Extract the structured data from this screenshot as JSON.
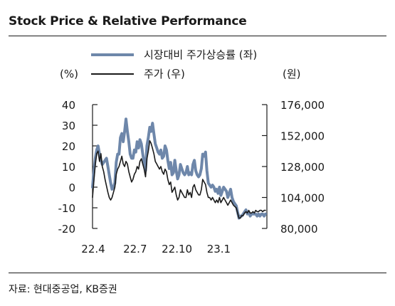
{
  "header": {
    "title": "Stock Price & Relative Performance"
  },
  "footer": {
    "source": "자료: 현대중공업, KB증권"
  },
  "chart_data": {
    "type": "line",
    "left_axis": {
      "unit": "(%)",
      "ylim": [
        -20,
        40
      ],
      "ticks": [
        "40",
        "30",
        "20",
        "10",
        "0",
        "-10",
        "-20"
      ],
      "tick_values": [
        40,
        30,
        20,
        10,
        0,
        -10,
        -20
      ]
    },
    "right_axis": {
      "unit": "(원)",
      "ylim": [
        80000,
        176000
      ],
      "ticks": [
        "176,000",
        "152,000",
        "128,000",
        "104,000",
        "80,000"
      ],
      "tick_values": [
        176000,
        152000,
        128000,
        104000,
        80000
      ]
    },
    "x_axis": {
      "ticks": [
        "22.4",
        "22.7",
        "22.10",
        "23.1"
      ],
      "tick_positions": [
        0,
        3,
        6,
        9
      ],
      "range": [
        0,
        12.5
      ]
    },
    "legend": {
      "placement": "top",
      "entries": [
        "시장대비 주가상승률 (좌)",
        "주가 (우)"
      ]
    },
    "series": [
      {
        "name": "시장대비 주가상승률 (좌)",
        "axis": "left",
        "color": "#6e87aa",
        "x": [
          0,
          0.1,
          0.2,
          0.3,
          0.4,
          0.5,
          0.6,
          0.7,
          0.8,
          0.9,
          1.0,
          1.1,
          1.2,
          1.3,
          1.4,
          1.5,
          1.6,
          1.7,
          1.8,
          1.9,
          2.0,
          2.1,
          2.2,
          2.3,
          2.4,
          2.5,
          2.6,
          2.7,
          2.8,
          2.9,
          3.0,
          3.1,
          3.2,
          3.3,
          3.4,
          3.5,
          3.6,
          3.7,
          3.8,
          3.9,
          4.0,
          4.1,
          4.2,
          4.3,
          4.4,
          4.5,
          4.6,
          4.7,
          4.8,
          4.9,
          5.0,
          5.1,
          5.2,
          5.3,
          5.4,
          5.5,
          5.6,
          5.7,
          5.8,
          5.9,
          6.0,
          6.1,
          6.2,
          6.3,
          6.4,
          6.5,
          6.6,
          6.7,
          6.8,
          6.9,
          7.0,
          7.1,
          7.2,
          7.3,
          7.4,
          7.5,
          7.6,
          7.7,
          7.8,
          7.9,
          8.0,
          8.1,
          8.2,
          8.3,
          8.4,
          8.5,
          8.6,
          8.7,
          8.8,
          8.9,
          9.0,
          9.1,
          9.2,
          9.3,
          9.4,
          9.5,
          9.6,
          9.7,
          9.8,
          9.9,
          10.0,
          10.1,
          10.2,
          10.3,
          10.4,
          10.5,
          10.6,
          10.7,
          10.8,
          10.9,
          11.0,
          11.1,
          11.2,
          11.3,
          11.4,
          11.5,
          11.6,
          11.7,
          11.8,
          11.9,
          12.0,
          12.1,
          12.2,
          12.3,
          12.4
        ],
        "values": [
          0,
          8,
          14,
          18,
          20,
          16,
          13,
          11,
          12,
          13,
          14,
          10,
          6,
          2,
          -1,
          0,
          2,
          12,
          16,
          16,
          24,
          26,
          22,
          27,
          33,
          27,
          22,
          16,
          14,
          14,
          18,
          17,
          22,
          19,
          23,
          21,
          16,
          12,
          8,
          20,
          24,
          29,
          27,
          31,
          26,
          21,
          19,
          17,
          16,
          18,
          14,
          15,
          20,
          18,
          13,
          9,
          12,
          6,
          7,
          13,
          8,
          4,
          6,
          11,
          9,
          7,
          6,
          7,
          10,
          6,
          7,
          6,
          11,
          13,
          8,
          6,
          5,
          6,
          9,
          16,
          15,
          17,
          8,
          2,
          1,
          0,
          1,
          0,
          -2,
          -1,
          -3,
          0,
          -4,
          -2,
          0,
          -1,
          -2,
          -5,
          -3,
          -1,
          -5,
          -7,
          -8,
          -9,
          -12,
          -15,
          -14,
          -14,
          -13,
          -12,
          -11,
          -13,
          -12,
          -14,
          -13,
          -13,
          -13,
          -13,
          -14,
          -13,
          -14,
          -13,
          -13,
          -14,
          -13
        ]
      },
      {
        "name": "주가 (우)",
        "axis": "right",
        "color": "#1a1a1a",
        "x": [
          0,
          0.1,
          0.2,
          0.3,
          0.4,
          0.5,
          0.6,
          0.7,
          0.8,
          0.9,
          1.0,
          1.1,
          1.2,
          1.3,
          1.4,
          1.5,
          1.6,
          1.7,
          1.8,
          1.9,
          2.0,
          2.1,
          2.2,
          2.3,
          2.4,
          2.5,
          2.6,
          2.7,
          2.8,
          2.9,
          3.0,
          3.1,
          3.2,
          3.3,
          3.4,
          3.5,
          3.6,
          3.7,
          3.8,
          3.9,
          4.0,
          4.1,
          4.2,
          4.3,
          4.4,
          4.5,
          4.6,
          4.7,
          4.8,
          4.9,
          5.0,
          5.1,
          5.2,
          5.3,
          5.4,
          5.5,
          5.6,
          5.7,
          5.8,
          5.9,
          6.0,
          6.1,
          6.2,
          6.3,
          6.4,
          6.5,
          6.6,
          6.7,
          6.8,
          6.9,
          7.0,
          7.1,
          7.2,
          7.3,
          7.4,
          7.5,
          7.6,
          7.7,
          7.8,
          7.9,
          8.0,
          8.1,
          8.2,
          8.3,
          8.4,
          8.5,
          8.6,
          8.7,
          8.8,
          8.9,
          9.0,
          9.1,
          9.2,
          9.3,
          9.4,
          9.5,
          9.6,
          9.7,
          9.8,
          9.9,
          10.0,
          10.1,
          10.2,
          10.3,
          10.4,
          10.5,
          10.6,
          10.7,
          10.8,
          10.9,
          11.0,
          11.1,
          11.2,
          11.3,
          11.4,
          11.5,
          11.6,
          11.7,
          11.8,
          11.9,
          12.0,
          12.1,
          12.2,
          12.3,
          12.4
        ],
        "values": [
          104000,
          118000,
          130000,
          138000,
          140000,
          132000,
          138000,
          128000,
          124000,
          118000,
          113000,
          108000,
          104000,
          102000,
          104000,
          108000,
          112000,
          122000,
          126000,
          128000,
          132000,
          136000,
          130000,
          128000,
          132000,
          130000,
          124000,
          120000,
          116000,
          118000,
          122000,
          124000,
          128000,
          126000,
          132000,
          134000,
          130000,
          126000,
          120000,
          134000,
          140000,
          148000,
          146000,
          142000,
          138000,
          132000,
          130000,
          128000,
          126000,
          128000,
          124000,
          122000,
          126000,
          124000,
          118000,
          114000,
          116000,
          108000,
          110000,
          112000,
          106000,
          102000,
          104000,
          110000,
          108000,
          106000,
          104000,
          104000,
          110000,
          106000,
          108000,
          104000,
          112000,
          114000,
          110000,
          108000,
          106000,
          106000,
          110000,
          118000,
          116000,
          114000,
          108000,
          104000,
          104000,
          102000,
          104000,
          102000,
          100000,
          102000,
          100000,
          104000,
          100000,
          102000,
          104000,
          102000,
          100000,
          98000,
          100000,
          102000,
          100000,
          98000,
          97000,
          96000,
          92000,
          88000,
          88000,
          90000,
          90000,
          92000,
          93000,
          92000,
          94000,
          92000,
          92000,
          93000,
          92000,
          94000,
          93000,
          93000,
          94000,
          94000,
          93000,
          94000,
          94000
        ]
      }
    ]
  }
}
